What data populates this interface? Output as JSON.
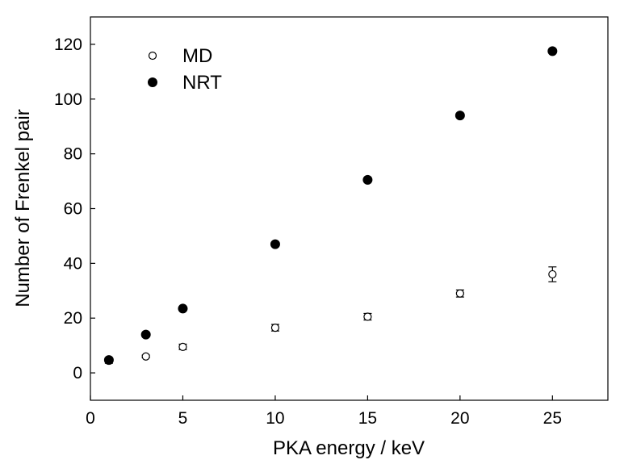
{
  "chart_data": {
    "type": "scatter",
    "xlabel": "PKA energy / keV",
    "ylabel": "Number of Frenkel pair",
    "xlim": [
      0,
      28
    ],
    "ylim": [
      -10,
      130
    ],
    "xticks": [
      0,
      5,
      10,
      15,
      20,
      25
    ],
    "yticks": [
      0,
      20,
      40,
      60,
      80,
      100,
      120
    ],
    "grid": false,
    "legend_position": "top-left",
    "series": [
      {
        "name": "MD",
        "marker": "open-circle",
        "color": "#000000",
        "x": [
          1,
          3,
          5,
          10,
          15,
          20,
          25
        ],
        "y": [
          4.5,
          6,
          9.5,
          16.5,
          20.5,
          29,
          36
        ],
        "error": [
          1,
          0.5,
          1,
          1.2,
          1.2,
          1.3,
          2.7
        ]
      },
      {
        "name": "NRT",
        "marker": "filled-circle",
        "color": "#000000",
        "x": [
          1,
          3,
          5,
          10,
          15,
          20,
          25
        ],
        "y": [
          4.7,
          14,
          23.5,
          47,
          70.5,
          94,
          117.5
        ]
      }
    ]
  }
}
